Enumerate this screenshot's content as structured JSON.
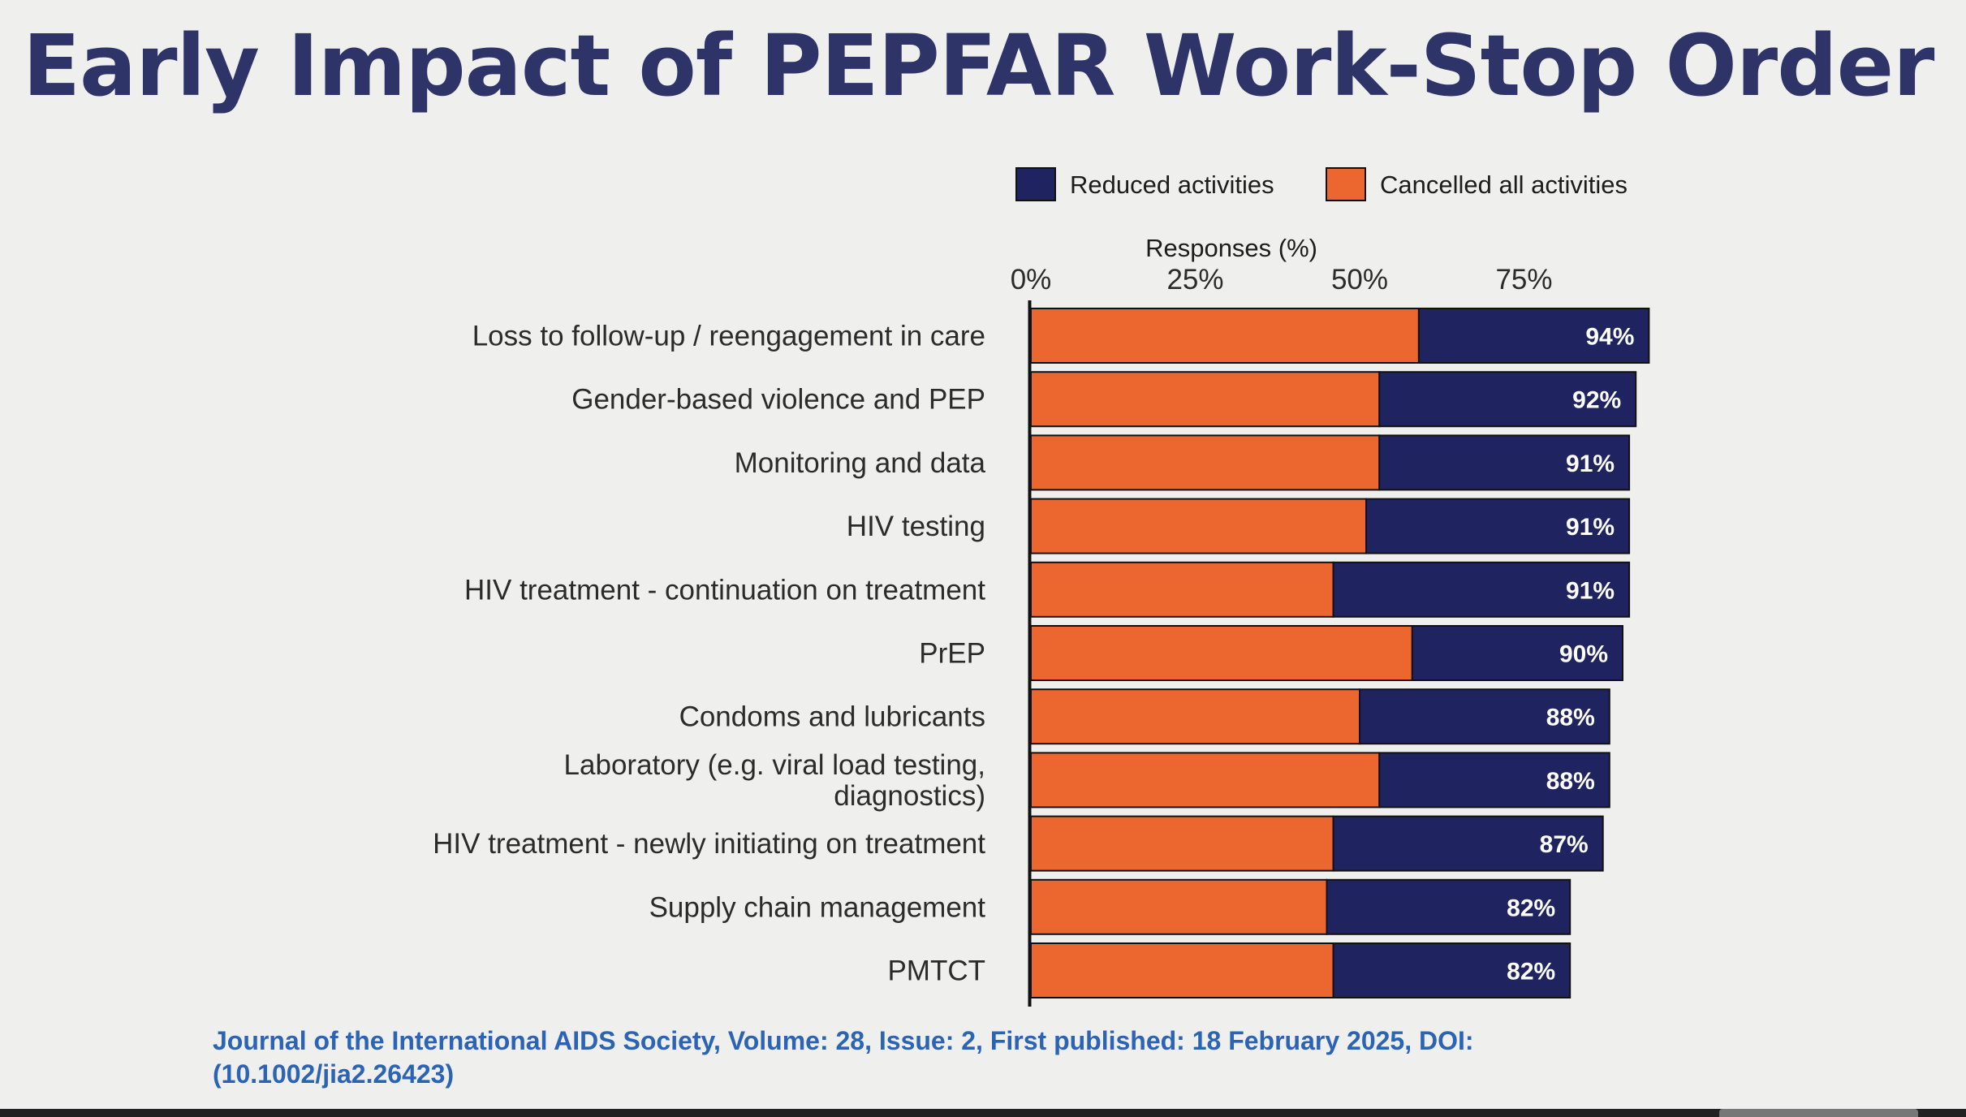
{
  "page": {
    "title": "Early Impact of PEPFAR Work-Stop Order",
    "citation_line1": "Journal of the International AIDS Society, Volume: 28, Issue: 2, First published: 18 February 2025, DOI:",
    "citation_line2": "(10.1002/jia2.26423)"
  },
  "colors": {
    "title": "#2f3468",
    "reduced": "#1f2360",
    "cancelled": "#ec6730",
    "citation": "#2c64b5",
    "background": "#efefee"
  },
  "chart_data": {
    "type": "bar",
    "orientation": "horizontal",
    "stacked": true,
    "title": "",
    "xlabel": "Responses (%)",
    "ylabel": "",
    "xlim": [
      0,
      100
    ],
    "x_axis_position": "top",
    "xticks": [
      0,
      25,
      50,
      75
    ],
    "xtick_labels": [
      "0%",
      "25%",
      "50%",
      "75%"
    ],
    "grid": false,
    "legend_position": "top",
    "categories": [
      [
        "Loss to follow-up / reengagement in care"
      ],
      [
        "Gender-based violence and PEP"
      ],
      [
        "Monitoring and data"
      ],
      [
        "HIV testing"
      ],
      [
        "HIV treatment - continuation on treatment"
      ],
      [
        "PrEP"
      ],
      [
        "Condoms and lubricants"
      ],
      [
        "Laboratory (e.g. viral load testing,",
        "diagnostics)"
      ],
      [
        "HIV treatment - newly initiating on treatment"
      ],
      [
        "Supply chain management"
      ],
      [
        "PMTCT"
      ]
    ],
    "series": [
      {
        "name": "Cancelled all activities",
        "values": [
          59,
          53,
          53,
          51,
          46,
          58,
          50,
          53,
          46,
          45,
          46
        ]
      },
      {
        "name": "Reduced activities",
        "values": [
          35,
          39,
          38,
          40,
          45,
          32,
          38,
          35,
          41,
          37,
          36
        ]
      }
    ],
    "legend": [
      "Reduced activities",
      "Cancelled all activities"
    ],
    "totals": [
      94,
      92,
      91,
      91,
      91,
      90,
      88,
      88,
      87,
      82,
      82
    ],
    "total_labels": [
      "94%",
      "92%",
      "91%",
      "91%",
      "91%",
      "90%",
      "88%",
      "88%",
      "87%",
      "82%",
      "82%"
    ]
  }
}
